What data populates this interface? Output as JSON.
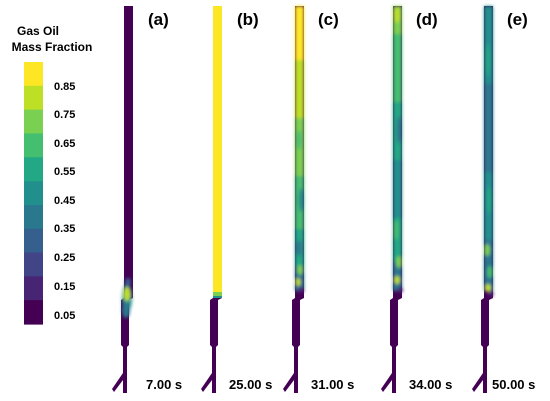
{
  "legend": {
    "title_line1": "Gas Oil",
    "title_line2": "Mass Fraction",
    "tick_labels": [
      "0.85",
      "0.75",
      "0.65",
      "0.55",
      "0.45",
      "0.35",
      "0.25",
      "0.15",
      "0.05"
    ]
  },
  "panels": [
    {
      "label": "(a)",
      "time": "7.00 s"
    },
    {
      "label": "(b)",
      "time": "25.00 s"
    },
    {
      "label": "(c)",
      "time": "31.00 s"
    },
    {
      "label": "(d)",
      "time": "34.00 s"
    },
    {
      "label": "(e)",
      "time": "50.00 s"
    }
  ],
  "colors": {
    "scale_low_to_high": [
      "#440154",
      "#482475",
      "#414487",
      "#355f8d",
      "#2a788e",
      "#21908d",
      "#22a884",
      "#44bf70",
      "#7ad151",
      "#bddf26",
      "#fde725"
    ]
  }
}
